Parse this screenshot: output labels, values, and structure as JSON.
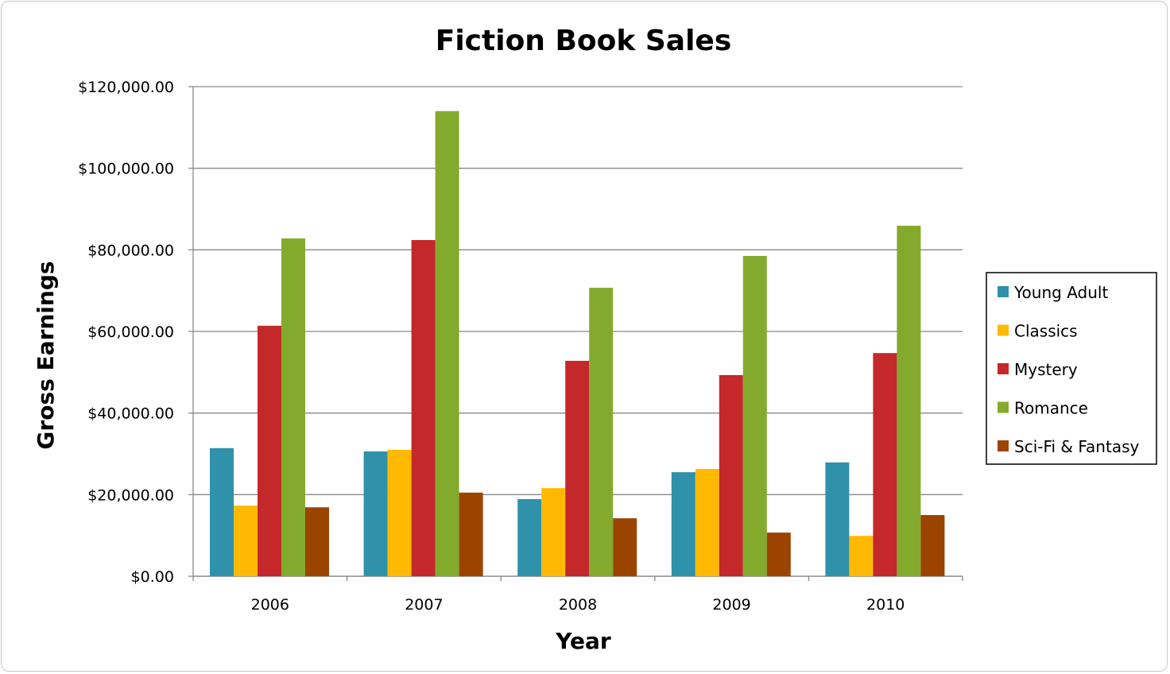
{
  "chart_data": {
    "type": "bar",
    "title": "Fiction Book Sales",
    "xlabel": "Year",
    "ylabel": "Gross Earnings",
    "categories": [
      "2006",
      "2007",
      "2008",
      "2009",
      "2010"
    ],
    "ylim": [
      0,
      120000
    ],
    "yticks": [
      0,
      20000,
      40000,
      60000,
      80000,
      100000,
      120000
    ],
    "ytick_labels": [
      "$0.00",
      "$20,000.00",
      "$40,000.00",
      "$60,000.00",
      "$80,000.00",
      "$100,000.00",
      "$120,000.00"
    ],
    "grid": true,
    "legend_position": "right",
    "series": [
      {
        "name": "Young Adult",
        "color": "#3091AA",
        "values": [
          31400,
          30600,
          18900,
          25500,
          27900
        ]
      },
      {
        "name": "Classics",
        "color": "#FFB900",
        "values": [
          17300,
          31000,
          21600,
          26300,
          9900
        ]
      },
      {
        "name": "Mystery",
        "color": "#C4282A",
        "values": [
          61400,
          82400,
          52800,
          49300,
          54700
        ]
      },
      {
        "name": "Romance",
        "color": "#84AA2D",
        "values": [
          82800,
          114000,
          70700,
          78500,
          85900
        ]
      },
      {
        "name": "Sci-Fi & Fantasy",
        "color": "#9B4400",
        "values": [
          16900,
          20500,
          14200,
          10700,
          15000
        ]
      }
    ]
  }
}
